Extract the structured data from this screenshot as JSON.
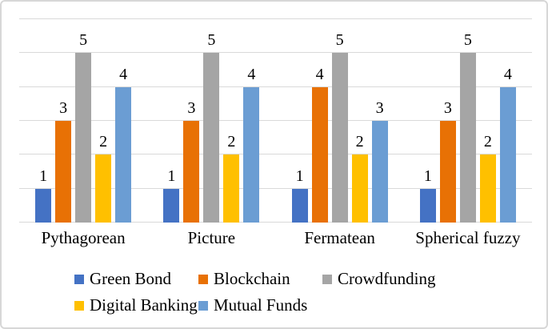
{
  "style": {
    "background": "#ffffff",
    "border_color": "#d7d7d7",
    "gridline_color": "#d9d9d9",
    "text_color": "#000000"
  },
  "chart_data": {
    "type": "bar",
    "title": "",
    "xlabel": "",
    "ylabel": "",
    "categories": [
      "Pythagorean",
      "Picture",
      "Fermatean",
      "Spherical fuzzy"
    ],
    "series": [
      {
        "name": "Green Bond",
        "color": "#4472c4",
        "values": [
          1,
          1,
          1,
          1
        ]
      },
      {
        "name": "Blockchain",
        "color": "#e87105",
        "values": [
          3,
          3,
          4,
          3
        ]
      },
      {
        "name": "Crowdfunding",
        "color": "#a5a5a5",
        "values": [
          5,
          5,
          5,
          5
        ]
      },
      {
        "name": "Digital Banking",
        "color": "#ffc000",
        "values": [
          2,
          2,
          2,
          2
        ]
      },
      {
        "name": "Mutual Funds",
        "color": "#6b9dd3",
        "values": [
          4,
          4,
          3,
          4
        ]
      }
    ],
    "ylim": [
      0,
      6
    ],
    "gridline_step": 1,
    "grid": true,
    "y_axis_labels_visible": false,
    "data_labels": "outside-end",
    "legend_position": "bottom",
    "legend_wrap": 3
  }
}
